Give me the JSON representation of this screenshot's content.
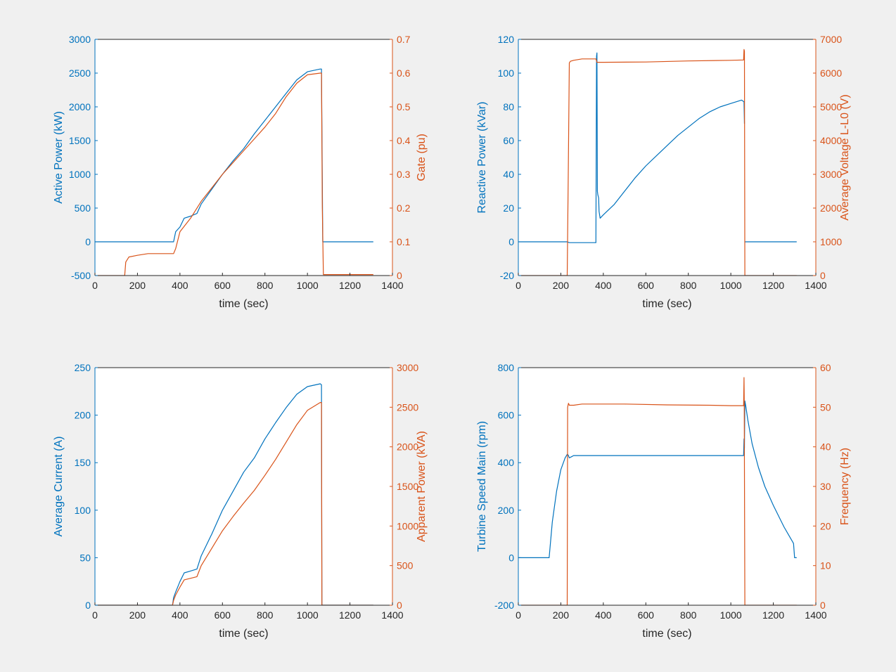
{
  "colors": {
    "left": "#0072BD",
    "right": "#D95319",
    "axis": "#262626",
    "background": "#f0f0f0",
    "plot": "#ffffff"
  },
  "chart_data": [
    {
      "type": "line",
      "xlabel": "time (sec)",
      "xlim": [
        0,
        1400
      ],
      "xticks": [
        0,
        200,
        400,
        600,
        800,
        1000,
        1200,
        1400
      ],
      "ylabel_left": "Active Power (kW)",
      "ylim_left": [
        -500,
        3000
      ],
      "yticks_left": [
        -500,
        0,
        500,
        1000,
        1500,
        2000,
        2500,
        3000
      ],
      "ylabel_right": "Gate (pu)",
      "ylim_right": [
        0,
        0.7
      ],
      "yticks_right": [
        0,
        0.1,
        0.2,
        0.3,
        0.4,
        0.5,
        0.6,
        0.7
      ],
      "grid": false,
      "series": [
        {
          "axis": "left",
          "x": [
            0,
            370,
            380,
            400,
            420,
            450,
            480,
            500,
            550,
            600,
            650,
            700,
            750,
            800,
            850,
            900,
            950,
            1000,
            1060,
            1066,
            1068,
            1070,
            1072,
            1310
          ],
          "y": [
            0,
            0,
            150,
            220,
            350,
            380,
            420,
            560,
            780,
            1000,
            1200,
            1380,
            1600,
            1800,
            2000,
            2200,
            2400,
            2520,
            2560,
            2560,
            1700,
            900,
            0,
            0
          ]
        },
        {
          "axis": "right",
          "x": [
            0,
            20,
            140,
            145,
            160,
            200,
            250,
            300,
            350,
            370,
            380,
            400,
            450,
            500,
            550,
            600,
            650,
            700,
            750,
            800,
            850,
            900,
            950,
            1000,
            1060,
            1066,
            1070,
            1075,
            1310
          ],
          "y": [
            0,
            0,
            0,
            0.04,
            0.055,
            0.06,
            0.065,
            0.065,
            0.065,
            0.065,
            0.08,
            0.13,
            0.17,
            0.22,
            0.26,
            0.3,
            0.335,
            0.37,
            0.405,
            0.44,
            0.48,
            0.53,
            0.57,
            0.595,
            0.6,
            0.6,
            0.2,
            0.003,
            0.003
          ]
        }
      ]
    },
    {
      "type": "line",
      "xlabel": "time (sec)",
      "xlim": [
        0,
        1400
      ],
      "xticks": [
        0,
        200,
        400,
        600,
        800,
        1000,
        1200,
        1400
      ],
      "ylabel_left": "Reactive Power (kVar)",
      "ylim_left": [
        -20,
        120
      ],
      "yticks_left": [
        -20,
        0,
        20,
        40,
        60,
        80,
        100,
        120
      ],
      "ylabel_right": "Average Voltage L-L0 (V)",
      "ylim_right": [
        0,
        7000
      ],
      "yticks_right": [
        0,
        1000,
        2000,
        3000,
        4000,
        5000,
        6000,
        7000
      ],
      "grid": false,
      "series": [
        {
          "axis": "left",
          "x": [
            0,
            230,
            240,
            300,
            365,
            368,
            370,
            372,
            374,
            378,
            380,
            385,
            400,
            450,
            500,
            550,
            600,
            650,
            700,
            750,
            800,
            850,
            900,
            950,
            1000,
            1050,
            1062,
            1064
          ],
          "y": [
            0,
            0,
            -0.5,
            -0.5,
            -0.5,
            110,
            112,
            30,
            28,
            26,
            18,
            14,
            16,
            22,
            30,
            38,
            45,
            51,
            57,
            63,
            68,
            73,
            77,
            80,
            82,
            84,
            83,
            70
          ]
        },
        {
          "axis": "left",
          "x": [
            1065,
            1310
          ],
          "y": [
            0,
            0
          ]
        },
        {
          "axis": "right",
          "x": [
            0,
            230,
            235,
            240,
            245,
            260,
            300,
            350,
            365,
            370,
            380,
            400,
            600,
            800,
            1000,
            1060,
            1062,
            1064,
            1066,
            1310
          ],
          "y": [
            0,
            0,
            3000,
            6300,
            6350,
            6380,
            6420,
            6420,
            6420,
            6320,
            6320,
            6320,
            6330,
            6360,
            6380,
            6390,
            6700,
            6650,
            0,
            0
          ]
        }
      ]
    },
    {
      "type": "line",
      "xlabel": "time (sec)",
      "xlim": [
        0,
        1400
      ],
      "xticks": [
        0,
        200,
        400,
        600,
        800,
        1000,
        1200,
        1400
      ],
      "ylabel_left": "Average Current (A)",
      "ylim_left": [
        0,
        250
      ],
      "yticks_left": [
        0,
        50,
        100,
        150,
        200,
        250
      ],
      "ylabel_right": "Apparent Power (kVA)",
      "ylim_right": [
        0,
        3000
      ],
      "yticks_right": [
        0,
        500,
        1000,
        1500,
        2000,
        2500,
        3000
      ],
      "grid": false,
      "series": [
        {
          "axis": "left",
          "x": [
            0,
            365,
            370,
            380,
            400,
            420,
            450,
            480,
            500,
            550,
            600,
            650,
            700,
            750,
            800,
            850,
            900,
            950,
            1000,
            1060,
            1066,
            1068,
            1310
          ],
          "y": [
            0,
            0,
            8,
            14,
            25,
            34,
            36,
            38,
            52,
            75,
            100,
            120,
            140,
            155,
            175,
            192,
            208,
            222,
            230,
            233,
            232,
            0,
            0
          ]
        },
        {
          "axis": "right",
          "x": [
            0,
            365,
            370,
            380,
            400,
            420,
            450,
            480,
            500,
            550,
            600,
            650,
            700,
            750,
            800,
            850,
            900,
            950,
            1000,
            1060,
            1066,
            1068,
            1310
          ],
          "y": [
            0,
            0,
            60,
            130,
            230,
            320,
            340,
            360,
            500,
            720,
            940,
            1120,
            1290,
            1450,
            1640,
            1840,
            2060,
            2280,
            2460,
            2560,
            2560,
            0,
            0
          ]
        }
      ]
    },
    {
      "type": "line",
      "xlabel": "time (sec)",
      "xlim": [
        0,
        1400
      ],
      "xticks": [
        0,
        200,
        400,
        600,
        800,
        1000,
        1200,
        1400
      ],
      "ylabel_left": "Turbine Speed Main (rpm)",
      "ylim_left": [
        -200,
        800
      ],
      "yticks_left": [
        -200,
        0,
        200,
        400,
        600,
        800
      ],
      "ylabel_right": "Frequency (Hz)",
      "ylim_right": [
        0,
        60
      ],
      "yticks_right": [
        0,
        10,
        20,
        30,
        40,
        50,
        60
      ],
      "grid": false,
      "series": [
        {
          "axis": "left",
          "x": [
            0,
            145,
            150,
            160,
            180,
            200,
            220,
            230,
            235,
            240,
            250,
            260,
            300,
            400,
            600,
            800,
            1000,
            1060,
            1062,
            1064,
            1066,
            1070,
            1080,
            1100,
            1130,
            1160,
            1200,
            1250,
            1295,
            1300,
            1310
          ],
          "y": [
            0,
            0,
            50,
            150,
            280,
            370,
            420,
            435,
            432,
            420,
            425,
            430,
            430,
            430,
            430,
            430,
            430,
            430,
            500,
            460,
            660,
            640,
            580,
            480,
            380,
            300,
            220,
            130,
            60,
            0,
            0
          ]
        },
        {
          "axis": "right",
          "x": [
            0,
            230,
            232,
            236,
            240,
            250,
            260,
            300,
            500,
            700,
            900,
            1000,
            1060,
            1062,
            1063,
            1066,
            1310
          ],
          "y": [
            0,
            0,
            50,
            51,
            50.5,
            50.5,
            50.5,
            50.8,
            50.8,
            50.6,
            50.5,
            50.4,
            50.4,
            57.5,
            52,
            0,
            0
          ]
        }
      ]
    }
  ]
}
